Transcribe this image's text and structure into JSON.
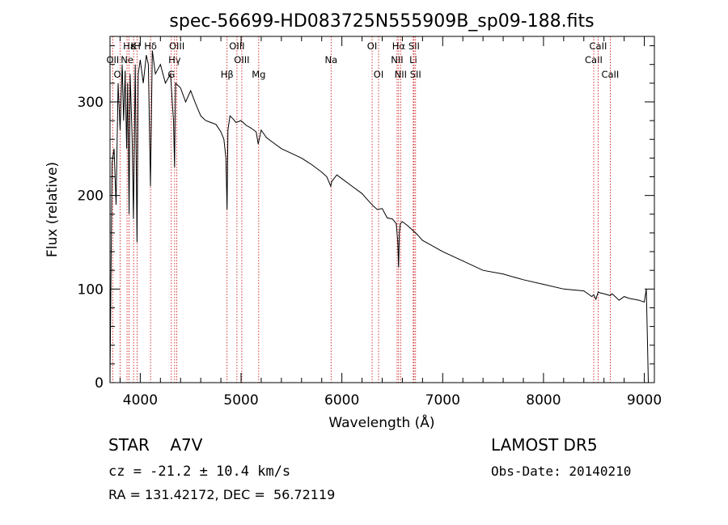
{
  "chart_data": {
    "type": "line",
    "title": "spec-56699-HD083725N555909B_sp09-188.fits",
    "xlabel": "Wavelength (Å)",
    "ylabel": "Flux (relative)",
    "xlim": [
      3700,
      9100
    ],
    "ylim": [
      0,
      370
    ],
    "xticks": [
      4000,
      5000,
      6000,
      7000,
      8000,
      9000
    ],
    "yticks": [
      0,
      100,
      200,
      300
    ],
    "grid": false,
    "line_color": "#000000",
    "marker_color": "#cc0000",
    "spectrum": {
      "x": [
        3700,
        3720,
        3740,
        3760,
        3780,
        3800,
        3820,
        3835,
        3850,
        3865,
        3875,
        3889,
        3900,
        3920,
        3933,
        3950,
        3968,
        3980,
        4000,
        4030,
        4060,
        4080,
        4101,
        4120,
        4150,
        4200,
        4250,
        4300,
        4330,
        4340,
        4350,
        4400,
        4450,
        4500,
        4550,
        4600,
        4650,
        4700,
        4750,
        4800,
        4830,
        4850,
        4861,
        4870,
        4890,
        4920,
        4950,
        5000,
        5050,
        5100,
        5150,
        5170,
        5180,
        5200,
        5250,
        5300,
        5400,
        5500,
        5600,
        5700,
        5800,
        5850,
        5890,
        5900,
        5950,
        6000,
        6100,
        6200,
        6250,
        6300,
        6350,
        6400,
        6450,
        6500,
        6540,
        6555,
        6563,
        6570,
        6580,
        6600,
        6650,
        6700,
        6750,
        6800,
        6900,
        7000,
        7200,
        7400,
        7600,
        7800,
        8000,
        8200,
        8400,
        8480,
        8498,
        8520,
        8542,
        8560,
        8600,
        8662,
        8680,
        8750,
        8800,
        8850,
        8900,
        8950,
        9000,
        9020,
        9030,
        9040
      ],
      "y": [
        0,
        235,
        250,
        190,
        320,
        270,
        340,
        280,
        330,
        250,
        320,
        180,
        330,
        260,
        175,
        340,
        150,
        330,
        345,
        320,
        350,
        340,
        210,
        355,
        330,
        340,
        320,
        330,
        280,
        230,
        320,
        315,
        300,
        312,
        298,
        285,
        280,
        278,
        276,
        268,
        260,
        240,
        185,
        270,
        285,
        282,
        278,
        280,
        275,
        272,
        268,
        255,
        260,
        270,
        262,
        258,
        250,
        245,
        240,
        233,
        225,
        220,
        210,
        215,
        222,
        218,
        210,
        202,
        196,
        190,
        185,
        186,
        176,
        175,
        170,
        150,
        123,
        160,
        170,
        172,
        168,
        163,
        158,
        152,
        146,
        140,
        130,
        120,
        116,
        110,
        105,
        100,
        98,
        92,
        94,
        89,
        97,
        96,
        95,
        93,
        95,
        88,
        92,
        90,
        89,
        88,
        86,
        100,
        50,
        0
      ]
    },
    "lines": [
      {
        "wave": 3934,
        "label": "K",
        "row": 0
      },
      {
        "wave": 3969,
        "label": "H",
        "row": 0
      },
      {
        "wave": 4102,
        "label": "Hδ",
        "row": 0
      },
      {
        "wave": 4341,
        "label": "Hγ",
        "row": 1
      },
      {
        "wave": 4861,
        "label": "Hβ",
        "row": 2
      },
      {
        "wave": 3869,
        "label": "Ne",
        "row": 1
      },
      {
        "wave": 3889,
        "label": "Hε",
        "row": 0
      },
      {
        "wave": 3727,
        "label": "OII",
        "row": 1
      },
      {
        "wave": 3800,
        "label": "OII",
        "row": 2
      },
      {
        "wave": 4308,
        "label": "G",
        "row": 2
      },
      {
        "wave": 4363,
        "label": "OIII",
        "row": 0
      },
      {
        "wave": 4959,
        "label": "OIII",
        "row": 0
      },
      {
        "wave": 5007,
        "label": "OIII",
        "row": 1
      },
      {
        "wave": 5175,
        "label": "Mg",
        "row": 2
      },
      {
        "wave": 5893,
        "label": "Na",
        "row": 1
      },
      {
        "wave": 6300,
        "label": "OI",
        "row": 0
      },
      {
        "wave": 6364,
        "label": "OI",
        "row": 2
      },
      {
        "wave": 6548,
        "label": "NII",
        "row": 1
      },
      {
        "wave": 6563,
        "label": "Hα",
        "row": 0
      },
      {
        "wave": 6583,
        "label": "NII",
        "row": 2
      },
      {
        "wave": 6708,
        "label": "Li",
        "row": 1
      },
      {
        "wave": 6716,
        "label": "SII",
        "row": 0
      },
      {
        "wave": 6731,
        "label": "SII",
        "row": 2
      },
      {
        "wave": 8498,
        "label": "CaII",
        "row": 1
      },
      {
        "wave": 8542,
        "label": "CaII",
        "row": 0
      },
      {
        "wave": 8662,
        "label": "CaII",
        "row": 2
      }
    ]
  },
  "info": {
    "class_line": "STAR    A7V",
    "cz_line": "cz = -21.2 ± 10.4 km/s",
    "radec_line": "RA = 131.42172, DEC =  56.72119",
    "survey_line": "LAMOST DR5",
    "obs_date_line": "Obs-Date: 20140210"
  }
}
